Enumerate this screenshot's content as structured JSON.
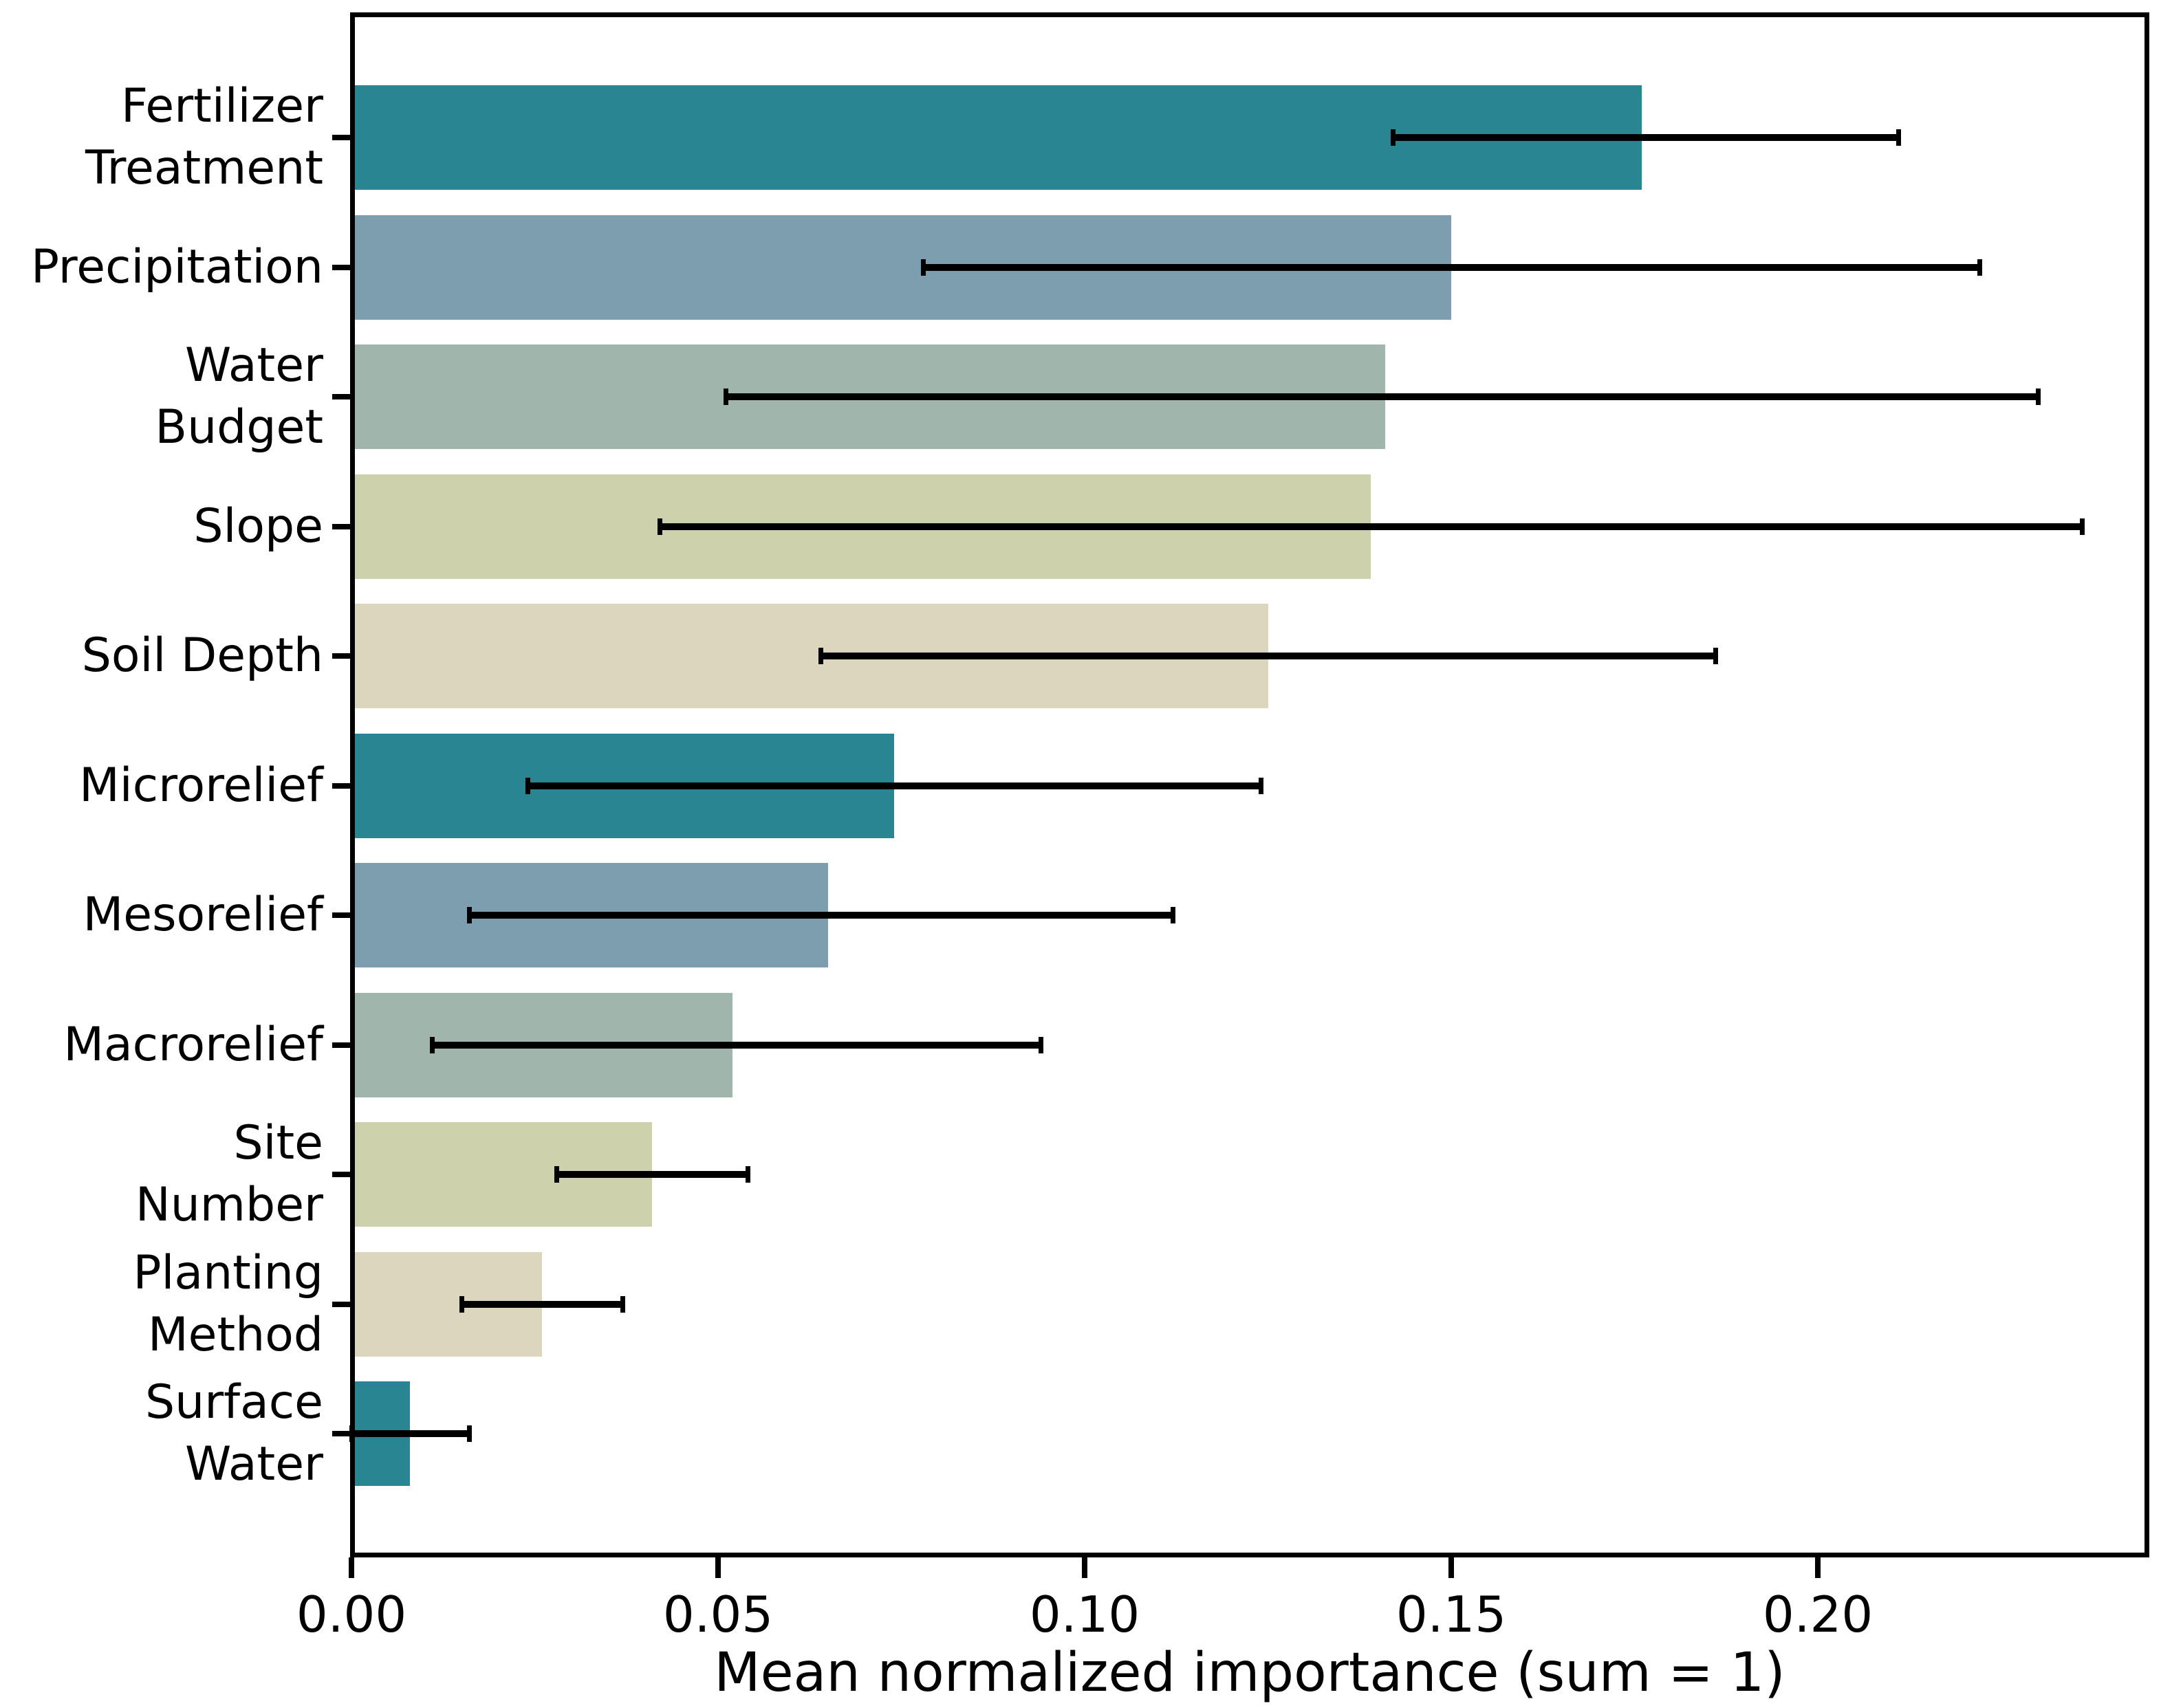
{
  "chart_data": {
    "type": "bar",
    "orientation": "horizontal",
    "title": "",
    "xlabel": "Mean normalized importance (sum = 1)",
    "ylabel": "",
    "categories": [
      "Fertilizer Treatment",
      "Precipitation",
      "Water Budget",
      "Slope",
      "Soil Depth",
      "Microrelief",
      "Mesorelief",
      "Macrorelief",
      "Site Number",
      "Planting Method",
      "Surface Water"
    ],
    "label_lines": [
      [
        "Fertilizer",
        "Treatment"
      ],
      [
        "Precipitation"
      ],
      [
        "Water",
        "Budget"
      ],
      [
        "Slope"
      ],
      [
        "Soil Depth"
      ],
      [
        "Microrelief"
      ],
      [
        "Mesorelief"
      ],
      [
        "Macrorelief"
      ],
      [
        "Site",
        "Number"
      ],
      [
        "Planting",
        "Method"
      ],
      [
        "Surface",
        "Water"
      ]
    ],
    "values": [
      0.176,
      0.15,
      0.141,
      0.139,
      0.125,
      0.074,
      0.065,
      0.052,
      0.041,
      0.026,
      0.008
    ],
    "error_low": [
      0.142,
      0.078,
      0.051,
      0.042,
      0.064,
      0.024,
      0.016,
      0.011,
      0.028,
      0.015,
      0.0
    ],
    "error_high": [
      0.211,
      0.222,
      0.23,
      0.236,
      0.186,
      0.124,
      0.112,
      0.094,
      0.054,
      0.037,
      0.016
    ],
    "bar_colors": [
      "#2a8593",
      "#7c9eaf",
      "#a0b5ac",
      "#cdd1ac",
      "#dcd6be",
      "#2a8593",
      "#7c9eaf",
      "#a0b5ac",
      "#cdd1ac",
      "#dcd6be",
      "#2a8593"
    ],
    "error_color": "#000000",
    "axis_color": "#000000",
    "background_color": "#ffffff",
    "x_ticks": [
      0.0,
      0.05,
      0.1,
      0.15,
      0.2
    ],
    "x_tick_labels": [
      "0.00",
      "0.05",
      "0.10",
      "0.15",
      "0.20"
    ],
    "xlim": [
      0,
      0.245
    ],
    "grid": false,
    "legend_position": "none",
    "error_bars": true
  }
}
